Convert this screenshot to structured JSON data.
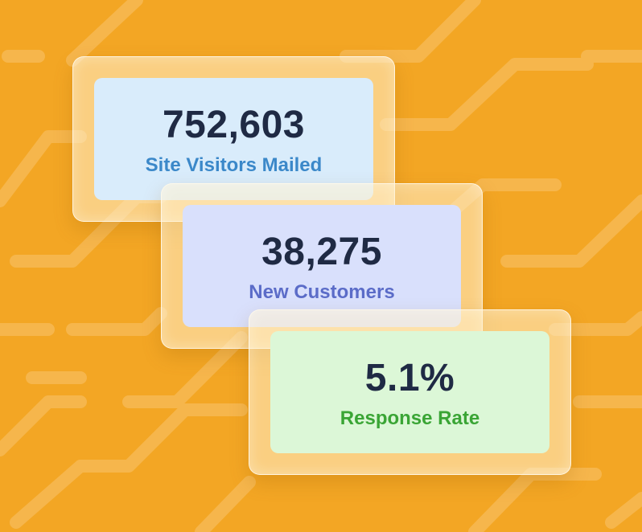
{
  "colors": {
    "background": "#f3a624",
    "stripe": "#f6b64c",
    "value_text": "#1f2a44"
  },
  "stats": [
    {
      "value": "752,603",
      "label": "Site Visitors Mailed",
      "panel_color": "#d9ecfb",
      "label_color": "#3b88c9"
    },
    {
      "value": "38,275",
      "label": "New Customers",
      "panel_color": "#d9e0fc",
      "label_color": "#5b6cc8"
    },
    {
      "value": "5.1%",
      "label": "Response Rate",
      "panel_color": "#dcf7d7",
      "label_color": "#3aa535"
    }
  ]
}
